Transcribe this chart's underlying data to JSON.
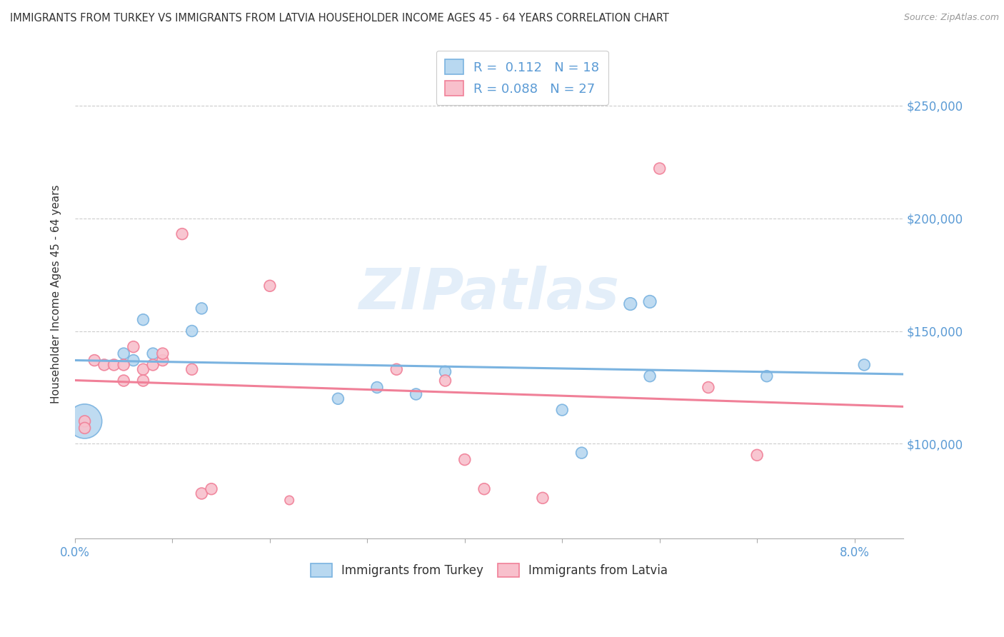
{
  "title": "IMMIGRANTS FROM TURKEY VS IMMIGRANTS FROM LATVIA HOUSEHOLDER INCOME AGES 45 - 64 YEARS CORRELATION CHART",
  "source": "Source: ZipAtlas.com",
  "ylabel": "Householder Income Ages 45 - 64 years",
  "xlim": [
    0.0,
    0.085
  ],
  "ylim": [
    58000,
    275000
  ],
  "y_ticks": [
    100000,
    150000,
    200000,
    250000
  ],
  "x_ticks": [
    0.0,
    0.01,
    0.02,
    0.03,
    0.04,
    0.05,
    0.06,
    0.07,
    0.08
  ],
  "turkey_color": "#7ab3e0",
  "turkey_color_fill": "#b8d8f0",
  "latvia_color": "#f08098",
  "latvia_color_fill": "#f8c0cc",
  "turkey_R": 0.112,
  "turkey_N": 18,
  "latvia_R": 0.088,
  "latvia_N": 27,
  "turkey_x": [
    0.001,
    0.005,
    0.006,
    0.007,
    0.008,
    0.012,
    0.013,
    0.027,
    0.031,
    0.035,
    0.038,
    0.05,
    0.052,
    0.057,
    0.059,
    0.059,
    0.071,
    0.081
  ],
  "turkey_y": [
    110000,
    140000,
    137000,
    155000,
    140000,
    150000,
    160000,
    120000,
    125000,
    122000,
    132000,
    115000,
    96000,
    162000,
    163000,
    130000,
    130000,
    135000
  ],
  "turkey_size": [
    1200,
    130,
    130,
    130,
    130,
    130,
    130,
    130,
    130,
    130,
    130,
    130,
    130,
    160,
    160,
    130,
    130,
    130
  ],
  "latvia_x": [
    0.001,
    0.001,
    0.002,
    0.003,
    0.004,
    0.005,
    0.005,
    0.006,
    0.007,
    0.007,
    0.008,
    0.009,
    0.009,
    0.011,
    0.012,
    0.013,
    0.014,
    0.02,
    0.022,
    0.033,
    0.038,
    0.04,
    0.042,
    0.048,
    0.06,
    0.065,
    0.07
  ],
  "latvia_y": [
    110000,
    107000,
    137000,
    135000,
    135000,
    135000,
    128000,
    143000,
    133000,
    128000,
    135000,
    137000,
    140000,
    193000,
    133000,
    78000,
    80000,
    170000,
    75000,
    133000,
    128000,
    93000,
    80000,
    76000,
    222000,
    125000,
    95000
  ],
  "latvia_size": [
    130,
    130,
    130,
    130,
    130,
    130,
    130,
    130,
    130,
    130,
    130,
    130,
    130,
    130,
    130,
    130,
    130,
    130,
    80,
    130,
    130,
    130,
    130,
    130,
    130,
    130,
    130
  ],
  "watermark": "ZIPatlas",
  "legend_label_turkey": "Immigrants from Turkey",
  "legend_label_latvia": "Immigrants from Latvia",
  "accent_color": "#5b9bd5",
  "text_color": "#333333",
  "grid_color": "#cccccc",
  "source_color": "#999999"
}
